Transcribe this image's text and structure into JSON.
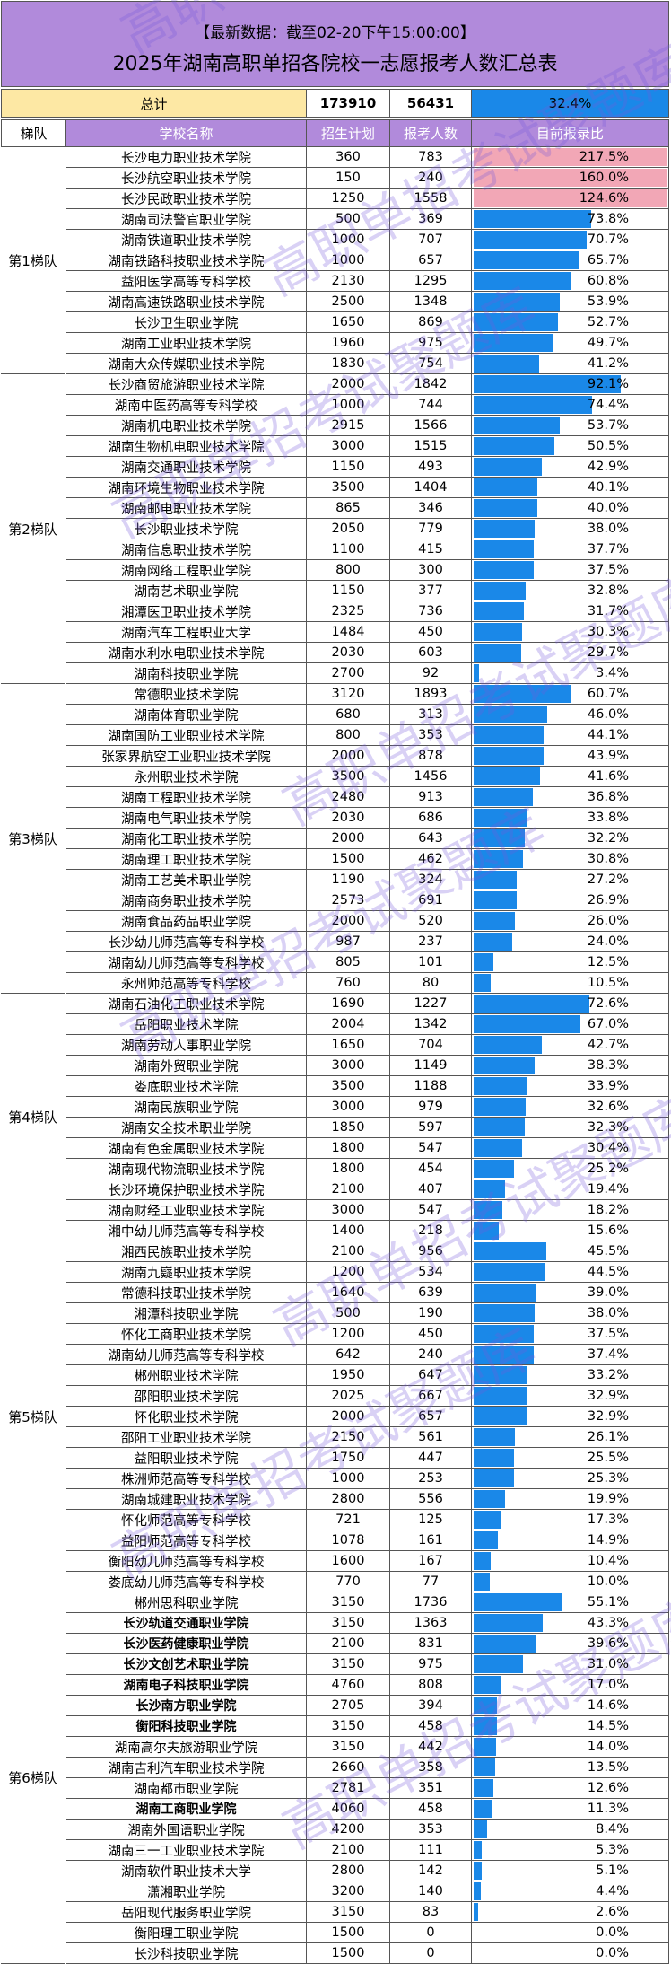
{
  "header": {
    "subtitle": "【最新数据：截至02-20下午15:00:00】",
    "title": "2025年湖南高职单招各院校一志愿报考人数汇总表"
  },
  "totals": {
    "label": "总计",
    "plan": "173910",
    "count": "56431",
    "ratio": "32.4%"
  },
  "columns": {
    "tier": "梯队",
    "school": "学校名称",
    "plan": "招生计划",
    "count": "报考人数",
    "ratio": "目前报录比"
  },
  "watermark": "高职单招考试聚题库",
  "colors": {
    "header_bg": "#b18adb",
    "total_bg": "#fde8a4",
    "bar": "#1a88e8",
    "over_bar": "#f2a7b6"
  },
  "tiers": [
    {
      "name": "第1梯队",
      "rows": [
        {
          "school": "长沙电力职业技术学院",
          "plan": "360",
          "count": "783",
          "ratio": "217.5%"
        },
        {
          "school": "长沙航空职业技术学院",
          "plan": "150",
          "count": "240",
          "ratio": "160.0%"
        },
        {
          "school": "长沙民政职业技术学院",
          "plan": "1250",
          "count": "1558",
          "ratio": "124.6%"
        },
        {
          "school": "湖南司法警官职业学院",
          "plan": "500",
          "count": "369",
          "ratio": "73.8%"
        },
        {
          "school": "湖南铁道职业技术学院",
          "plan": "1000",
          "count": "707",
          "ratio": "70.7%"
        },
        {
          "school": "湖南铁路科技职业技术学院",
          "plan": "1000",
          "count": "657",
          "ratio": "65.7%"
        },
        {
          "school": "益阳医学高等专科学校",
          "plan": "2130",
          "count": "1295",
          "ratio": "60.8%"
        },
        {
          "school": "湖南高速铁路职业技术学院",
          "plan": "2500",
          "count": "1348",
          "ratio": "53.9%"
        },
        {
          "school": "长沙卫生职业学院",
          "plan": "1650",
          "count": "869",
          "ratio": "52.7%"
        },
        {
          "school": "湖南工业职业技术学院",
          "plan": "1960",
          "count": "975",
          "ratio": "49.7%"
        },
        {
          "school": "湖南大众传媒职业技术学院",
          "plan": "1830",
          "count": "754",
          "ratio": "41.2%"
        }
      ]
    },
    {
      "name": "第2梯队",
      "rows": [
        {
          "school": "长沙商贸旅游职业技术学院",
          "plan": "2000",
          "count": "1842",
          "ratio": "92.1%"
        },
        {
          "school": "湖南中医药高等专科学校",
          "plan": "1000",
          "count": "744",
          "ratio": "74.4%"
        },
        {
          "school": "湖南机电职业技术学院",
          "plan": "2915",
          "count": "1566",
          "ratio": "53.7%"
        },
        {
          "school": "湖南生物机电职业技术学院",
          "plan": "3000",
          "count": "1515",
          "ratio": "50.5%"
        },
        {
          "school": "湖南交通职业技术学院",
          "plan": "1150",
          "count": "493",
          "ratio": "42.9%"
        },
        {
          "school": "湖南环境生物职业技术学院",
          "plan": "3500",
          "count": "1404",
          "ratio": "40.1%"
        },
        {
          "school": "湖南邮电职业技术学院",
          "plan": "865",
          "count": "346",
          "ratio": "40.0%"
        },
        {
          "school": "长沙职业技术学院",
          "plan": "2050",
          "count": "779",
          "ratio": "38.0%"
        },
        {
          "school": "湖南信息职业技术学院",
          "plan": "1100",
          "count": "415",
          "ratio": "37.7%"
        },
        {
          "school": "湖南网络工程职业学院",
          "plan": "800",
          "count": "300",
          "ratio": "37.5%"
        },
        {
          "school": "湖南艺术职业学院",
          "plan": "1150",
          "count": "377",
          "ratio": "32.8%"
        },
        {
          "school": "湘潭医卫职业技术学院",
          "plan": "2325",
          "count": "736",
          "ratio": "31.7%"
        },
        {
          "school": "湖南汽车工程职业大学",
          "plan": "1484",
          "count": "450",
          "ratio": "30.3%"
        },
        {
          "school": "湖南水利水电职业技术学院",
          "plan": "2030",
          "count": "603",
          "ratio": "29.7%"
        },
        {
          "school": "湖南科技职业学院",
          "plan": "2700",
          "count": "92",
          "ratio": "3.4%"
        }
      ]
    },
    {
      "name": "第3梯队",
      "rows": [
        {
          "school": "常德职业技术学院",
          "plan": "3120",
          "count": "1893",
          "ratio": "60.7%"
        },
        {
          "school": "湖南体育职业学院",
          "plan": "680",
          "count": "313",
          "ratio": "46.0%"
        },
        {
          "school": "湖南国防工业职业技术学院",
          "plan": "800",
          "count": "353",
          "ratio": "44.1%"
        },
        {
          "school": "张家界航空工业职业技术学院",
          "plan": "2000",
          "count": "878",
          "ratio": "43.9%"
        },
        {
          "school": "永州职业技术学院",
          "plan": "3500",
          "count": "1456",
          "ratio": "41.6%"
        },
        {
          "school": "湖南工程职业技术学院",
          "plan": "2480",
          "count": "913",
          "ratio": "36.8%"
        },
        {
          "school": "湖南电气职业技术学院",
          "plan": "2030",
          "count": "686",
          "ratio": "33.8%"
        },
        {
          "school": "湖南化工职业技术学院",
          "plan": "2000",
          "count": "643",
          "ratio": "32.2%"
        },
        {
          "school": "湖南理工职业技术学院",
          "plan": "1500",
          "count": "462",
          "ratio": "30.8%"
        },
        {
          "school": "湖南工艺美术职业学院",
          "plan": "1190",
          "count": "324",
          "ratio": "27.2%"
        },
        {
          "school": "湖南商务职业技术学院",
          "plan": "2573",
          "count": "691",
          "ratio": "26.9%"
        },
        {
          "school": "湖南食品药品职业学院",
          "plan": "2000",
          "count": "520",
          "ratio": "26.0%"
        },
        {
          "school": "长沙幼儿师范高等专科学校",
          "plan": "987",
          "count": "237",
          "ratio": "24.0%"
        },
        {
          "school": "湖南幼儿师范高等专科学校",
          "plan": "805",
          "count": "101",
          "ratio": "12.5%"
        },
        {
          "school": "永州师范高等专科学校",
          "plan": "760",
          "count": "80",
          "ratio": "10.5%"
        }
      ]
    },
    {
      "name": "第4梯队",
      "rows": [
        {
          "school": "湖南石油化工职业技术学院",
          "plan": "1690",
          "count": "1227",
          "ratio": "72.6%"
        },
        {
          "school": "岳阳职业技术学院",
          "plan": "2004",
          "count": "1342",
          "ratio": "67.0%"
        },
        {
          "school": "湖南劳动人事职业学院",
          "plan": "1650",
          "count": "704",
          "ratio": "42.7%"
        },
        {
          "school": "湖南外贸职业学院",
          "plan": "3000",
          "count": "1149",
          "ratio": "38.3%"
        },
        {
          "school": "娄底职业技术学院",
          "plan": "3500",
          "count": "1188",
          "ratio": "33.9%"
        },
        {
          "school": "湖南民族职业学院",
          "plan": "3000",
          "count": "979",
          "ratio": "32.6%"
        },
        {
          "school": "湖南安全技术职业学院",
          "plan": "1850",
          "count": "597",
          "ratio": "32.3%"
        },
        {
          "school": "湖南有色金属职业技术学院",
          "plan": "1800",
          "count": "547",
          "ratio": "30.4%"
        },
        {
          "school": "湖南现代物流职业技术学院",
          "plan": "1800",
          "count": "454",
          "ratio": "25.2%"
        },
        {
          "school": "长沙环境保护职业技术学院",
          "plan": "2100",
          "count": "407",
          "ratio": "19.4%"
        },
        {
          "school": "湖南财经工业职业技术学院",
          "plan": "3000",
          "count": "547",
          "ratio": "18.2%"
        },
        {
          "school": "湘中幼儿师范高等专科学校",
          "plan": "1400",
          "count": "218",
          "ratio": "15.6%"
        }
      ]
    },
    {
      "name": "第5梯队",
      "rows": [
        {
          "school": "湘西民族职业技术学院",
          "plan": "2100",
          "count": "956",
          "ratio": "45.5%"
        },
        {
          "school": "湖南九嶷职业技术学院",
          "plan": "1200",
          "count": "534",
          "ratio": "44.5%"
        },
        {
          "school": "常德科技职业技术学院",
          "plan": "1640",
          "count": "639",
          "ratio": "39.0%"
        },
        {
          "school": "湘潭科技职业学院",
          "plan": "500",
          "count": "190",
          "ratio": "38.0%"
        },
        {
          "school": "怀化工商职业技术学院",
          "plan": "1200",
          "count": "450",
          "ratio": "37.5%"
        },
        {
          "school": "湖南幼儿师范高等专科学校",
          "plan": "642",
          "count": "240",
          "ratio": "37.4%"
        },
        {
          "school": "郴州职业技术学院",
          "plan": "1950",
          "count": "647",
          "ratio": "33.2%"
        },
        {
          "school": "邵阳职业技术学院",
          "plan": "2025",
          "count": "667",
          "ratio": "32.9%"
        },
        {
          "school": "怀化职业技术学院",
          "plan": "2000",
          "count": "657",
          "ratio": "32.9%"
        },
        {
          "school": "邵阳工业职业技术学院",
          "plan": "2150",
          "count": "561",
          "ratio": "26.1%"
        },
        {
          "school": "益阳职业技术学院",
          "plan": "1750",
          "count": "447",
          "ratio": "25.5%"
        },
        {
          "school": "株洲师范高等专科学校",
          "plan": "1000",
          "count": "253",
          "ratio": "25.3%"
        },
        {
          "school": "湖南城建职业技术学院",
          "plan": "2800",
          "count": "556",
          "ratio": "19.9%"
        },
        {
          "school": "怀化师范高等专科学校",
          "plan": "721",
          "count": "125",
          "ratio": "17.3%"
        },
        {
          "school": "益阳师范高等专科学校",
          "plan": "1078",
          "count": "161",
          "ratio": "14.9%"
        },
        {
          "school": "衡阳幼儿师范高等专科学校",
          "plan": "1600",
          "count": "167",
          "ratio": "10.4%"
        },
        {
          "school": "娄底幼儿师范高等专科学校",
          "plan": "770",
          "count": "77",
          "ratio": "10.0%"
        }
      ]
    },
    {
      "name": "第6梯队",
      "rows": [
        {
          "school": "郴州思科职业学院",
          "plan": "3150",
          "count": "1736",
          "ratio": "55.1%"
        },
        {
          "school": "长沙轨道交通职业学院",
          "plan": "3150",
          "count": "1363",
          "ratio": "43.3%",
          "bold": true
        },
        {
          "school": "长沙医药健康职业学院",
          "plan": "2100",
          "count": "831",
          "ratio": "39.6%",
          "bold": true
        },
        {
          "school": "长沙文创艺术职业学院",
          "plan": "3150",
          "count": "975",
          "ratio": "31.0%",
          "bold": true
        },
        {
          "school": "湖南电子科技职业学院",
          "plan": "4760",
          "count": "808",
          "ratio": "17.0%",
          "bold": true
        },
        {
          "school": "长沙南方职业学院",
          "plan": "2705",
          "count": "394",
          "ratio": "14.6%",
          "bold": true
        },
        {
          "school": "衡阳科技职业学院",
          "plan": "3150",
          "count": "458",
          "ratio": "14.5%",
          "bold": true
        },
        {
          "school": "湖南高尔夫旅游职业学院",
          "plan": "3150",
          "count": "442",
          "ratio": "14.0%"
        },
        {
          "school": "湖南吉利汽车职业技术学院",
          "plan": "2660",
          "count": "358",
          "ratio": "13.5%"
        },
        {
          "school": "湖南都市职业学院",
          "plan": "2781",
          "count": "351",
          "ratio": "12.6%"
        },
        {
          "school": "湖南工商职业学院",
          "plan": "4060",
          "count": "458",
          "ratio": "11.3%",
          "bold": true
        },
        {
          "school": "湖南外国语职业学院",
          "plan": "4200",
          "count": "353",
          "ratio": "8.4%"
        },
        {
          "school": "湖南三一工业职业技术学院",
          "plan": "2100",
          "count": "111",
          "ratio": "5.3%"
        },
        {
          "school": "湖南软件职业技术大学",
          "plan": "2800",
          "count": "142",
          "ratio": "5.1%"
        },
        {
          "school": "潇湘职业学院",
          "plan": "3200",
          "count": "140",
          "ratio": "4.4%"
        },
        {
          "school": "岳阳现代服务职业学院",
          "plan": "3150",
          "count": "83",
          "ratio": "2.6%"
        },
        {
          "school": "衡阳理工职业学院",
          "plan": "1500",
          "count": "0",
          "ratio": "0.0%"
        },
        {
          "school": "长沙科技职业学院",
          "plan": "1500",
          "count": "0",
          "ratio": "0.0%"
        }
      ]
    }
  ]
}
